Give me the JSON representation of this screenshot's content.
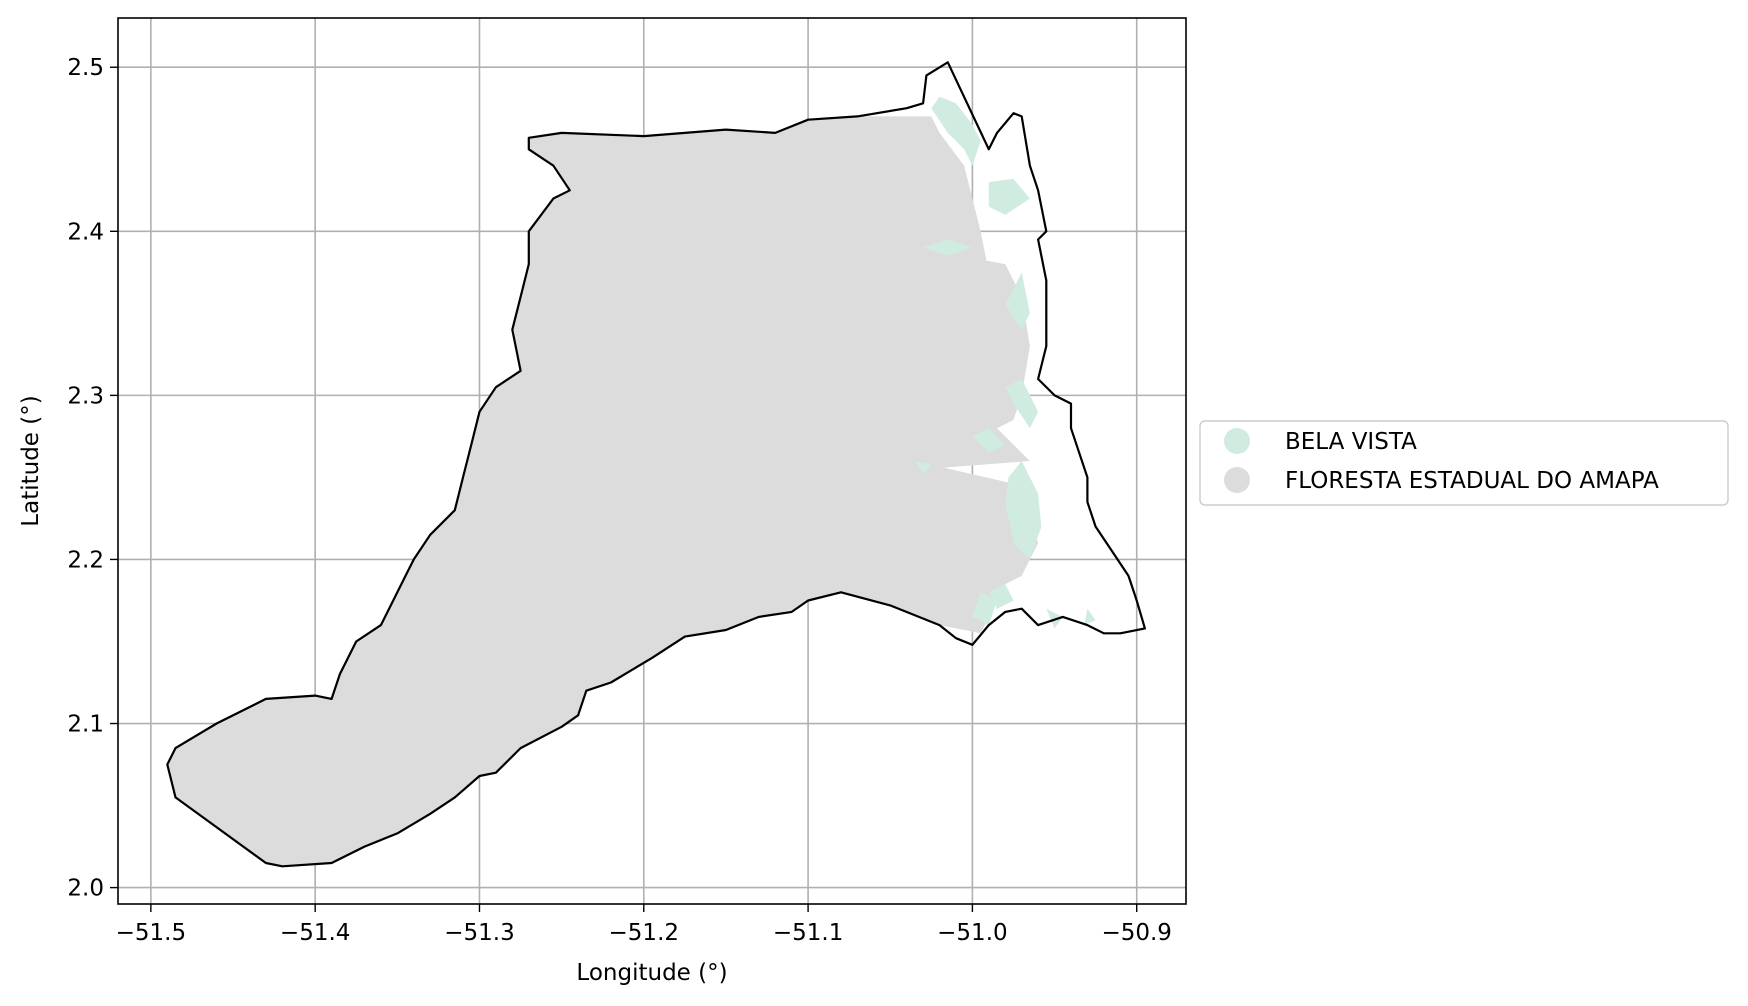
{
  "chart_data": {
    "type": "map",
    "xlabel": "Longitude (°)",
    "ylabel": "Latitude (°)",
    "xlim": [
      -51.52,
      -50.87
    ],
    "ylim": [
      1.99,
      2.53
    ],
    "x_ticks": [
      -51.5,
      -51.4,
      -51.3,
      -51.2,
      -51.1,
      -51.0,
      -50.9
    ],
    "x_tick_labels": [
      "−51.5",
      "−51.4",
      "−51.3",
      "−51.2",
      "−51.1",
      "−51.0",
      "−50.9"
    ],
    "y_ticks": [
      2.0,
      2.1,
      2.2,
      2.3,
      2.4,
      2.5
    ],
    "y_tick_labels": [
      "2.0",
      "2.1",
      "2.2",
      "2.3",
      "2.4",
      "2.5"
    ],
    "grid": true,
    "legend_position": "right-center",
    "legend": [
      {
        "label": "BELA VISTA",
        "color": "#d0ebe0"
      },
      {
        "label": "FLORESTA ESTADUAL DO AMAPA",
        "color": "#dcdcdc"
      }
    ],
    "layers": [
      {
        "name": "FLORESTA ESTADUAL DO AMAPA",
        "color": "#dcdcdc",
        "polygon": [
          [
            -51.485,
            2.055
          ],
          [
            -51.49,
            2.075
          ],
          [
            -51.485,
            2.085
          ],
          [
            -51.46,
            2.1
          ],
          [
            -51.43,
            2.115
          ],
          [
            -51.4,
            2.117
          ],
          [
            -51.39,
            2.115
          ],
          [
            -51.385,
            2.13
          ],
          [
            -51.375,
            2.15
          ],
          [
            -51.36,
            2.16
          ],
          [
            -51.355,
            2.17
          ],
          [
            -51.345,
            2.19
          ],
          [
            -51.34,
            2.2
          ],
          [
            -51.33,
            2.215
          ],
          [
            -51.315,
            2.23
          ],
          [
            -51.31,
            2.25
          ],
          [
            -51.305,
            2.27
          ],
          [
            -51.3,
            2.29
          ],
          [
            -51.29,
            2.305
          ],
          [
            -51.275,
            2.315
          ],
          [
            -51.28,
            2.34
          ],
          [
            -51.275,
            2.36
          ],
          [
            -51.27,
            2.38
          ],
          [
            -51.27,
            2.4
          ],
          [
            -51.255,
            2.42
          ],
          [
            -51.245,
            2.425
          ],
          [
            -51.255,
            2.44
          ],
          [
            -51.27,
            2.45
          ],
          [
            -51.27,
            2.457
          ],
          [
            -51.25,
            2.46
          ],
          [
            -51.2,
            2.458
          ],
          [
            -51.15,
            2.462
          ],
          [
            -51.12,
            2.46
          ],
          [
            -51.1,
            2.468
          ],
          [
            -51.07,
            2.47
          ],
          [
            -51.04,
            2.47
          ],
          [
            -51.025,
            2.47
          ],
          [
            -51.02,
            2.46
          ],
          [
            -51.005,
            2.44
          ],
          [
            -51.0,
            2.42
          ],
          [
            -50.995,
            2.4
          ],
          [
            -50.99,
            2.375
          ],
          [
            -51.03,
            2.38
          ],
          [
            -51.035,
            2.39
          ],
          [
            -50.98,
            2.38
          ],
          [
            -50.97,
            2.36
          ],
          [
            -50.965,
            2.33
          ],
          [
            -50.97,
            2.3
          ],
          [
            -50.975,
            2.285
          ],
          [
            -50.985,
            2.28
          ],
          [
            -50.975,
            2.27
          ],
          [
            -50.965,
            2.26
          ],
          [
            -51.03,
            2.255
          ],
          [
            -51.035,
            2.26
          ],
          [
            -50.97,
            2.245
          ],
          [
            -50.96,
            2.21
          ],
          [
            -50.97,
            2.19
          ],
          [
            -50.98,
            2.185
          ],
          [
            -50.99,
            2.165
          ],
          [
            -50.995,
            2.155
          ],
          [
            -51.02,
            2.16
          ],
          [
            -51.05,
            2.172
          ],
          [
            -51.08,
            2.18
          ],
          [
            -51.1,
            2.175
          ],
          [
            -51.11,
            2.168
          ],
          [
            -51.13,
            2.165
          ],
          [
            -51.15,
            2.157
          ],
          [
            -51.175,
            2.153
          ],
          [
            -51.195,
            2.14
          ],
          [
            -51.22,
            2.125
          ],
          [
            -51.235,
            2.12
          ],
          [
            -51.24,
            2.105
          ],
          [
            -51.25,
            2.098
          ],
          [
            -51.275,
            2.085
          ],
          [
            -51.29,
            2.07
          ],
          [
            -51.3,
            2.068
          ],
          [
            -51.315,
            2.055
          ],
          [
            -51.33,
            2.045
          ],
          [
            -51.35,
            2.033
          ],
          [
            -51.37,
            2.025
          ],
          [
            -51.39,
            2.015
          ],
          [
            -51.42,
            2.013
          ],
          [
            -51.43,
            2.015
          ]
        ]
      },
      {
        "name": "BELA VISTA",
        "color": "#d0ebe0",
        "polygons": [
          [
            [
              -51.025,
              2.475
            ],
            [
              -51.02,
              2.482
            ],
            [
              -51.01,
              2.478
            ],
            [
              -51.0,
              2.465
            ],
            [
              -50.995,
              2.455
            ],
            [
              -51.0,
              2.44
            ],
            [
              -51.005,
              2.45
            ],
            [
              -51.015,
              2.46
            ]
          ],
          [
            [
              -50.99,
              2.43
            ],
            [
              -50.975,
              2.432
            ],
            [
              -50.965,
              2.42
            ],
            [
              -50.98,
              2.41
            ],
            [
              -50.99,
              2.415
            ]
          ],
          [
            [
              -51.03,
              2.39
            ],
            [
              -51.015,
              2.395
            ],
            [
              -51.0,
              2.39
            ],
            [
              -51.015,
              2.385
            ]
          ],
          [
            [
              -50.97,
              2.375
            ],
            [
              -50.965,
              2.35
            ],
            [
              -50.97,
              2.34
            ],
            [
              -50.98,
              2.355
            ]
          ],
          [
            [
              -50.97,
              2.31
            ],
            [
              -50.96,
              2.29
            ],
            [
              -50.965,
              2.28
            ],
            [
              -50.975,
              2.295
            ],
            [
              -50.98,
              2.305
            ]
          ],
          [
            [
              -51.0,
              2.275
            ],
            [
              -50.99,
              2.28
            ],
            [
              -50.98,
              2.27
            ],
            [
              -50.99,
              2.265
            ]
          ],
          [
            [
              -50.97,
              2.26
            ],
            [
              -50.96,
              2.24
            ],
            [
              -50.958,
              2.22
            ],
            [
              -50.965,
              2.2
            ],
            [
              -50.975,
              2.21
            ],
            [
              -50.98,
              2.235
            ],
            [
              -50.978,
              2.25
            ]
          ],
          [
            [
              -51.035,
              2.26
            ],
            [
              -51.025,
              2.258
            ],
            [
              -51.03,
              2.252
            ]
          ],
          [
            [
              -50.99,
              2.18
            ],
            [
              -50.98,
              2.185
            ],
            [
              -50.975,
              2.175
            ],
            [
              -50.985,
              2.17
            ]
          ],
          [
            [
              -51.0,
              2.165
            ],
            [
              -50.995,
              2.18
            ],
            [
              -50.985,
              2.175
            ],
            [
              -50.99,
              2.16
            ]
          ],
          [
            [
              -50.955,
              2.17
            ],
            [
              -50.945,
              2.165
            ],
            [
              -50.95,
              2.158
            ]
          ],
          [
            [
              -50.93,
              2.17
            ],
            [
              -50.925,
              2.163
            ],
            [
              -50.932,
              2.16
            ]
          ]
        ]
      },
      {
        "name": "study-area-boundary",
        "color": "#000000",
        "polygon": [
          [
            -51.485,
            2.055
          ],
          [
            -51.49,
            2.075
          ],
          [
            -51.485,
            2.085
          ],
          [
            -51.46,
            2.1
          ],
          [
            -51.43,
            2.115
          ],
          [
            -51.4,
            2.117
          ],
          [
            -51.39,
            2.115
          ],
          [
            -51.385,
            2.13
          ],
          [
            -51.375,
            2.15
          ],
          [
            -51.36,
            2.16
          ],
          [
            -51.355,
            2.17
          ],
          [
            -51.345,
            2.19
          ],
          [
            -51.34,
            2.2
          ],
          [
            -51.33,
            2.215
          ],
          [
            -51.315,
            2.23
          ],
          [
            -51.31,
            2.25
          ],
          [
            -51.305,
            2.27
          ],
          [
            -51.3,
            2.29
          ],
          [
            -51.29,
            2.305
          ],
          [
            -51.275,
            2.315
          ],
          [
            -51.28,
            2.34
          ],
          [
            -51.275,
            2.36
          ],
          [
            -51.27,
            2.38
          ],
          [
            -51.27,
            2.4
          ],
          [
            -51.255,
            2.42
          ],
          [
            -51.245,
            2.425
          ],
          [
            -51.255,
            2.44
          ],
          [
            -51.27,
            2.45
          ],
          [
            -51.27,
            2.457
          ],
          [
            -51.25,
            2.46
          ],
          [
            -51.2,
            2.458
          ],
          [
            -51.15,
            2.462
          ],
          [
            -51.12,
            2.46
          ],
          [
            -51.1,
            2.468
          ],
          [
            -51.07,
            2.47
          ],
          [
            -51.04,
            2.475
          ],
          [
            -51.03,
            2.478
          ],
          [
            -51.028,
            2.495
          ],
          [
            -51.015,
            2.503
          ],
          [
            -50.99,
            2.45
          ],
          [
            -50.985,
            2.46
          ],
          [
            -50.975,
            2.472
          ],
          [
            -50.97,
            2.47
          ],
          [
            -50.965,
            2.44
          ],
          [
            -50.96,
            2.425
          ],
          [
            -50.955,
            2.4
          ],
          [
            -50.96,
            2.395
          ],
          [
            -50.955,
            2.37
          ],
          [
            -50.955,
            2.33
          ],
          [
            -50.96,
            2.31
          ],
          [
            -50.95,
            2.3
          ],
          [
            -50.94,
            2.295
          ],
          [
            -50.94,
            2.28
          ],
          [
            -50.935,
            2.265
          ],
          [
            -50.93,
            2.25
          ],
          [
            -50.93,
            2.235
          ],
          [
            -50.925,
            2.22
          ],
          [
            -50.915,
            2.205
          ],
          [
            -50.905,
            2.19
          ],
          [
            -50.9,
            2.175
          ],
          [
            -50.895,
            2.158
          ],
          [
            -50.91,
            2.155
          ],
          [
            -50.92,
            2.155
          ],
          [
            -50.93,
            2.16
          ],
          [
            -50.945,
            2.165
          ],
          [
            -50.96,
            2.16
          ],
          [
            -50.97,
            2.17
          ],
          [
            -50.98,
            2.168
          ],
          [
            -50.99,
            2.16
          ],
          [
            -51.0,
            2.148
          ],
          [
            -51.01,
            2.152
          ],
          [
            -51.02,
            2.16
          ],
          [
            -51.05,
            2.172
          ],
          [
            -51.08,
            2.18
          ],
          [
            -51.1,
            2.175
          ],
          [
            -51.11,
            2.168
          ],
          [
            -51.13,
            2.165
          ],
          [
            -51.15,
            2.157
          ],
          [
            -51.175,
            2.153
          ],
          [
            -51.195,
            2.14
          ],
          [
            -51.22,
            2.125
          ],
          [
            -51.235,
            2.12
          ],
          [
            -51.24,
            2.105
          ],
          [
            -51.25,
            2.098
          ],
          [
            -51.275,
            2.085
          ],
          [
            -51.29,
            2.07
          ],
          [
            -51.3,
            2.068
          ],
          [
            -51.315,
            2.055
          ],
          [
            -51.33,
            2.045
          ],
          [
            -51.35,
            2.033
          ],
          [
            -51.37,
            2.025
          ],
          [
            -51.39,
            2.015
          ],
          [
            -51.42,
            2.013
          ],
          [
            -51.43,
            2.015
          ]
        ]
      }
    ]
  }
}
